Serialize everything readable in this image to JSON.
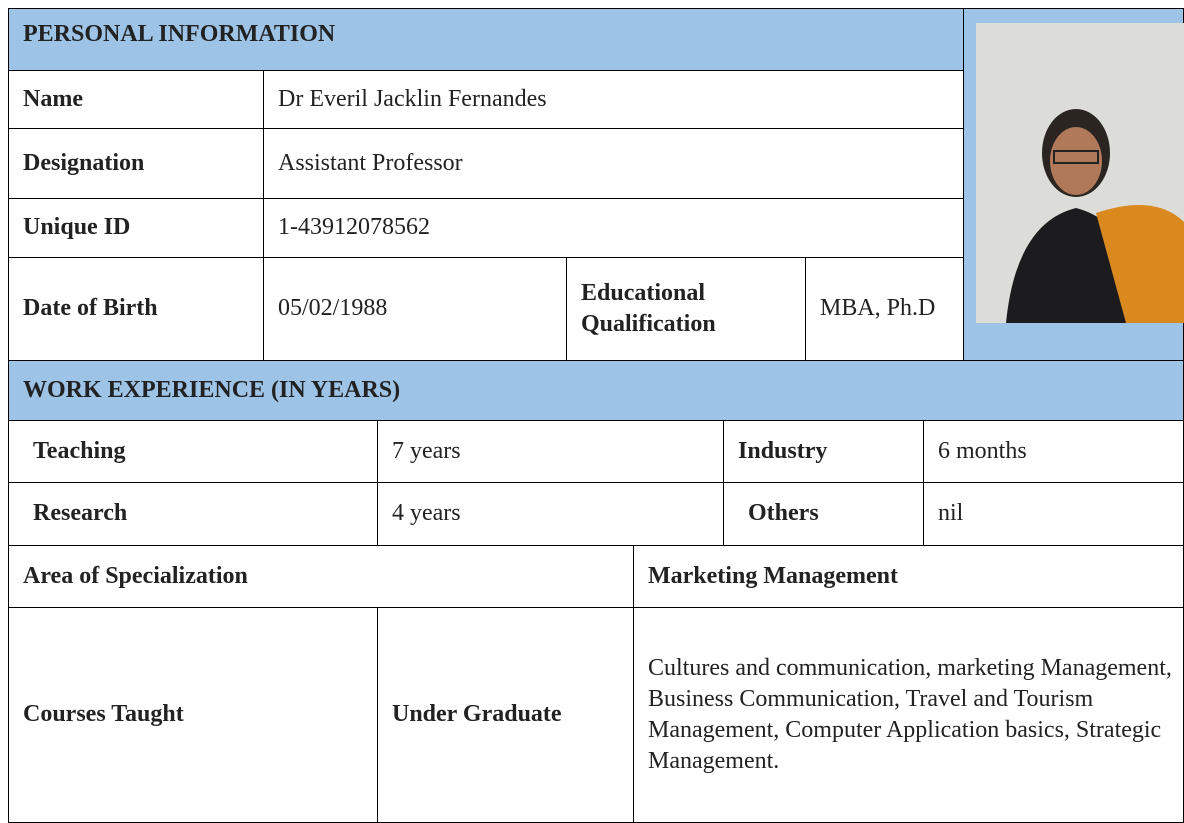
{
  "personal_information": {
    "title": "PERSONAL INFORMATION",
    "name": {
      "label": "Name",
      "value": "Dr Everil Jacklin Fernandes"
    },
    "designation": {
      "label": "Designation",
      "value": "Assistant Professor"
    },
    "unique_id": {
      "label": "Unique ID",
      "value": "1-43912078562"
    },
    "date_of_birth": {
      "label": "Date of Birth",
      "value": "05/02/1988"
    },
    "educational_qualification": {
      "label": "Educational Qualification",
      "value": "MBA, Ph.D"
    }
  },
  "work_experience": {
    "title": "WORK EXPERIENCE (IN YEARS)",
    "teaching": {
      "label": "Teaching",
      "value": "7 years"
    },
    "industry": {
      "label": "Industry",
      "value": "6 months"
    },
    "research": {
      "label": "Research",
      "value": "4 years"
    },
    "others": {
      "label": "Others",
      "value": "nil"
    }
  },
  "area_of_specialization": {
    "label": "Area of Specialization",
    "value": "Marketing Management"
  },
  "courses_taught": {
    "label": "Courses Taught",
    "level": "Under Graduate",
    "value": "Cultures and communication, marketing Management, Business Communication, Travel and Tourism Management, Computer Application basics, Strategic Management."
  }
}
